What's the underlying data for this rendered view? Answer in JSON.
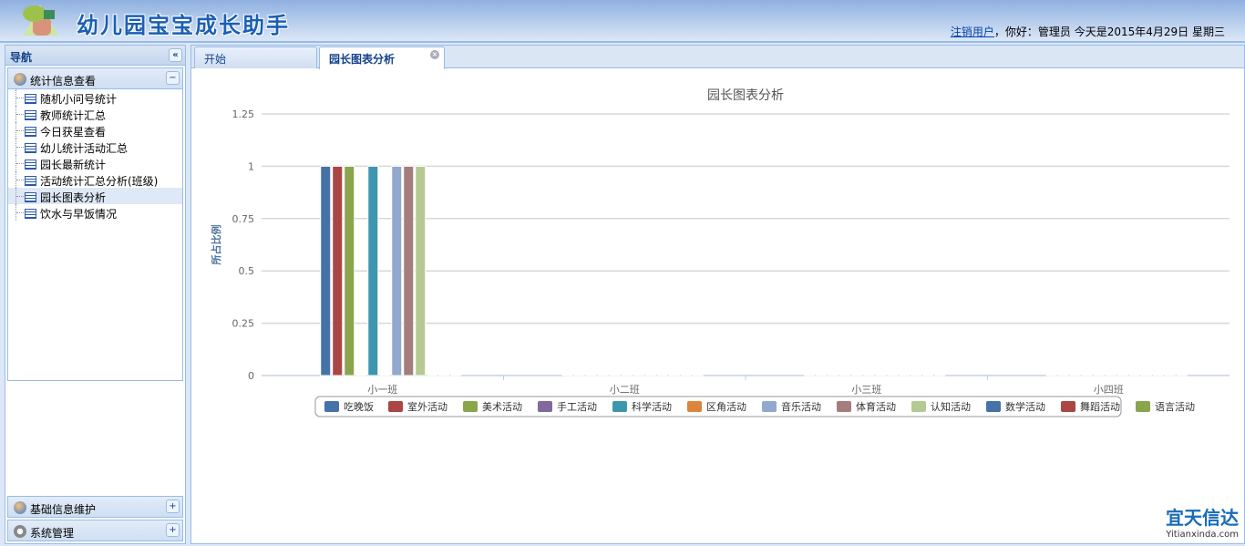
{
  "header": {
    "title": "幼儿园宝宝成长助手",
    "logout": "注销用户",
    "greeting": "，你好：管理员 今天是2015年4月29日 星期三"
  },
  "nav": {
    "title": "导航",
    "sections": [
      {
        "label": "统计信息查看",
        "expanded": true,
        "items": [
          "随机小问号统计",
          "教师统计汇总",
          "今日获星查看",
          "幼儿统计活动汇总",
          "园长最新统计",
          "活动统计汇总分析(班级)",
          "园长图表分析",
          "饮水与早饭情况"
        ],
        "selected": "园长图表分析"
      },
      {
        "label": "基础信息维护"
      },
      {
        "label": "系统管理"
      }
    ]
  },
  "tabs": [
    {
      "label": "开始"
    },
    {
      "label": "园长图表分析",
      "active": true
    }
  ],
  "chart_data": {
    "type": "bar",
    "title": "园长图表分析",
    "ylabel": "所占比例",
    "xlabel": "",
    "ylim": [
      0,
      1.25
    ],
    "yticks": [
      "0",
      "0.25",
      "0.5",
      "0.75",
      "1",
      "1.25"
    ],
    "grid": true,
    "legend": "bottom",
    "categories": [
      "小一班",
      "小二班",
      "小三班",
      "小四班"
    ],
    "series": [
      {
        "name": "吃晚饭",
        "color": "#4572A7",
        "values": [
          1,
          0,
          0,
          0
        ]
      },
      {
        "name": "室外活动",
        "color": "#AA4643",
        "values": [
          1,
          0,
          0,
          0
        ]
      },
      {
        "name": "美术活动",
        "color": "#89A54E",
        "values": [
          1,
          0,
          0,
          0
        ]
      },
      {
        "name": "手工活动",
        "color": "#80699B",
        "values": [
          0,
          0,
          0,
          0
        ]
      },
      {
        "name": "科学活动",
        "color": "#3D96AE",
        "values": [
          1,
          0,
          0,
          0
        ]
      },
      {
        "name": "区角活动",
        "color": "#DB843D",
        "values": [
          0,
          0,
          0,
          0
        ]
      },
      {
        "name": "音乐活动",
        "color": "#92A8CD",
        "values": [
          1,
          0,
          0,
          0
        ]
      },
      {
        "name": "体育活动",
        "color": "#A47D7C",
        "values": [
          1,
          0,
          0,
          0
        ]
      },
      {
        "name": "认知活动",
        "color": "#B5CA92",
        "values": [
          1,
          0,
          0,
          0
        ]
      },
      {
        "name": "数学活动",
        "color": "#4572A7",
        "values": [
          0,
          0,
          0,
          0
        ]
      },
      {
        "name": "舞蹈活动",
        "color": "#AA4643",
        "values": [
          0,
          0,
          0,
          0
        ]
      },
      {
        "name": "语言活动",
        "color": "#89A54E",
        "values": [
          0,
          0,
          0,
          0
        ]
      }
    ]
  },
  "watermark": {
    "brand": "宜天信达",
    "site": "Yitianxinda.com"
  }
}
